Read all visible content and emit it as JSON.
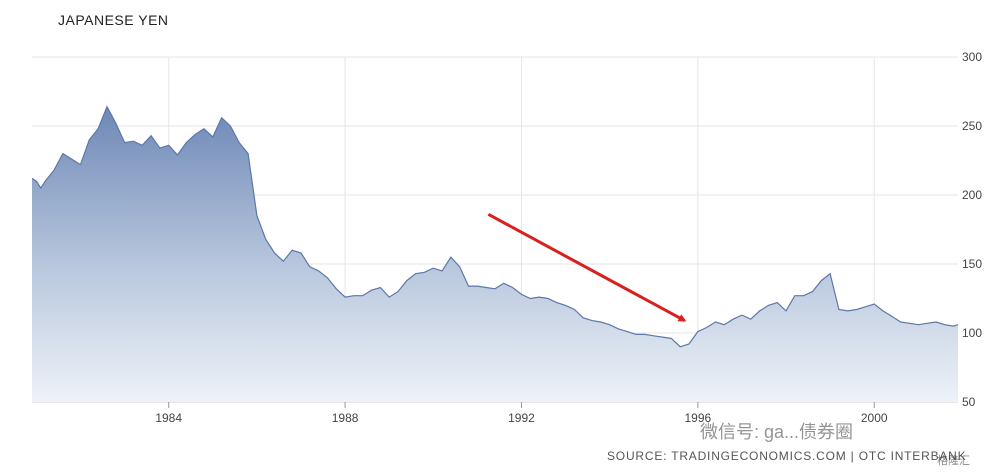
{
  "chart_title": "JAPANESE YEN",
  "source_text": "SOURCE: TRADINGECONOMICS.COM | OTC INTERBANK",
  "watermark_text": "微信号: ga...债券圈",
  "watermark_logo_text": "格隆汇",
  "colors": {
    "area_top": "#6e88b6",
    "area_bottom": "#eef2f8",
    "line": "#5d77a8",
    "arrow": "#d9201f",
    "grid": "#e6e6e6"
  },
  "chart_data": {
    "type": "area",
    "title": "JAPANESE YEN",
    "xlabel": "",
    "ylabel": "",
    "x_ticks": [
      "1984",
      "1988",
      "1992",
      "1996",
      "2000"
    ],
    "y_ticks": [
      50,
      100,
      150,
      200,
      250,
      300
    ],
    "ylim": [
      50,
      300
    ],
    "xlim": [
      1980.9,
      2001.9
    ],
    "grid": true,
    "y_axis_side": "right",
    "annotation": {
      "type": "arrow",
      "from": [
        1991.25,
        186
      ],
      "to": [
        1995.7,
        109
      ],
      "color": "#d9201f"
    },
    "series": [
      {
        "x": [
          1980.9,
          1981.0,
          1981.1,
          1981.2,
          1981.4,
          1981.6,
          1981.8,
          1982.0,
          1982.2,
          1982.4,
          1982.6,
          1982.8,
          1983.0,
          1983.2,
          1983.4,
          1983.6,
          1983.8,
          1984.0,
          1984.2,
          1984.4,
          1984.6,
          1984.8,
          1985.0,
          1985.2,
          1985.4,
          1985.6,
          1985.8,
          1986.0,
          1986.2,
          1986.4,
          1986.6,
          1986.8,
          1987.0,
          1987.2,
          1987.4,
          1987.6,
          1987.8,
          1988.0,
          1988.2,
          1988.4,
          1988.6,
          1988.8,
          1989.0,
          1989.2,
          1989.4,
          1989.6,
          1989.8,
          1990.0,
          1990.2,
          1990.4,
          1990.6,
          1990.8,
          1991.0,
          1991.2,
          1991.4,
          1991.6,
          1991.8,
          1992.0,
          1992.2,
          1992.4,
          1992.6,
          1992.8,
          1993.0,
          1993.2,
          1993.4,
          1993.6,
          1993.8,
          1994.0,
          1994.2,
          1994.4,
          1994.6,
          1994.8,
          1995.0,
          1995.2,
          1995.4,
          1995.6,
          1995.8,
          1996.0,
          1996.2,
          1996.4,
          1996.6,
          1996.8,
          1997.0,
          1997.2,
          1997.4,
          1997.6,
          1997.8,
          1998.0,
          1998.2,
          1998.4,
          1998.6,
          1998.8,
          1999.0,
          1999.2,
          1999.4,
          1999.6,
          1999.8,
          2000.0,
          2000.2,
          2000.4,
          2000.6,
          2000.8,
          2001.0,
          2001.2,
          2001.4,
          2001.6,
          2001.8,
          2001.9
        ],
        "values": [
          212,
          210,
          205,
          210,
          218,
          230,
          226,
          222,
          240,
          248,
          264,
          252,
          238,
          239,
          236,
          243,
          234,
          236,
          229,
          238,
          244,
          248,
          242,
          256,
          250,
          238,
          230,
          185,
          168,
          158,
          152,
          160,
          158,
          148,
          145,
          140,
          132,
          126,
          127,
          127,
          131,
          133,
          126,
          130,
          138,
          143,
          144,
          147,
          145,
          155,
          148,
          134,
          134,
          133,
          132,
          136,
          133,
          128,
          125,
          126,
          125,
          122,
          120,
          117,
          111,
          109,
          108,
          106,
          103,
          101,
          99,
          99,
          98,
          97,
          96,
          90,
          92,
          101,
          104,
          108,
          106,
          110,
          113,
          110,
          116,
          120,
          122,
          116,
          127,
          127,
          130,
          138,
          143,
          117,
          116,
          117,
          119,
          121,
          116,
          112,
          108,
          107,
          106,
          107,
          108,
          106,
          105,
          106
        ]
      }
    ]
  }
}
